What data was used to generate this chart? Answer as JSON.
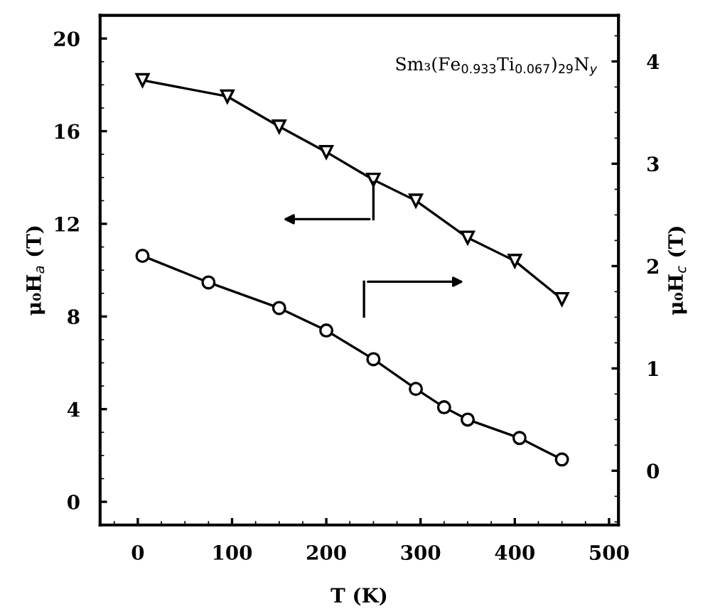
{
  "chart_data": {
    "type": "line",
    "xlabel": "T (K)",
    "ylabel": "μ₀H$_{a}$ (T)",
    "y2label": "μ₀H$_{c}$ (T)",
    "annotations": [
      "Sm₃(Fe$_{0.933}$Ti$_{0.067}$)$_{29}$N$_{y}$"
    ],
    "xlim": [
      -40,
      510
    ],
    "xticks": [
      0,
      100,
      200,
      300,
      400,
      500
    ],
    "ylim": [
      -1,
      21
    ],
    "yticks": [
      0,
      4,
      8,
      12,
      16,
      20
    ],
    "y2lim": [
      -0.53,
      4.45
    ],
    "y2ticks": [
      0,
      1,
      2,
      3,
      4
    ],
    "grid": false,
    "legend": false,
    "line_style": "solid",
    "series": [
      {
        "color": "#000000",
        "marker": "triangle",
        "x": [
          5,
          95,
          150,
          200,
          250,
          295,
          350,
          400,
          450
        ],
        "values": [
          18.2,
          17.5,
          16.2,
          15.1,
          13.9,
          13.0,
          11.4,
          10.4,
          8.75
        ]
      },
      {
        "color": "#000000",
        "marker": "circle",
        "axis": "y2",
        "x": [
          5,
          75,
          150,
          200,
          250,
          295,
          325,
          350,
          405,
          450
        ],
        "values": [
          2.1,
          1.84,
          1.59,
          1.37,
          1.09,
          0.8,
          0.62,
          0.5,
          0.32,
          0.11
        ]
      }
    ]
  }
}
